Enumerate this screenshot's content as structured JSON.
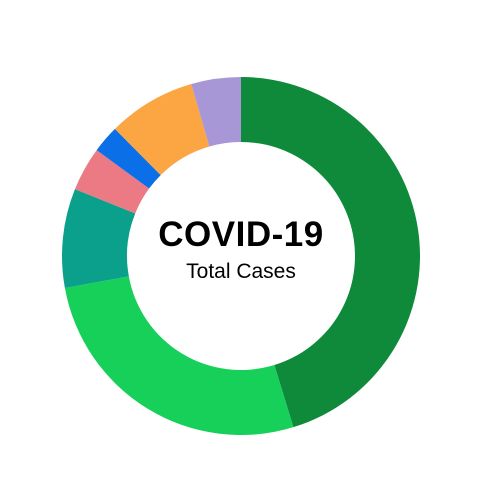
{
  "chart_data": {
    "type": "pie",
    "variant": "donut",
    "title": "COVID-19",
    "subtitle": "Total Cases",
    "legend": "none",
    "slices": [
      {
        "value": 45.5,
        "color": "#0E8A3A"
      },
      {
        "value": 27.0,
        "color": "#16D05A"
      },
      {
        "value": 9.0,
        "color": "#0BA08C"
      },
      {
        "value": 4.0,
        "color": "#EC7A84"
      },
      {
        "value": 2.5,
        "color": "#0B6FE8"
      },
      {
        "value": 8.0,
        "color": "#FBA543"
      },
      {
        "value": 4.5,
        "color": "#A797D6"
      }
    ]
  }
}
